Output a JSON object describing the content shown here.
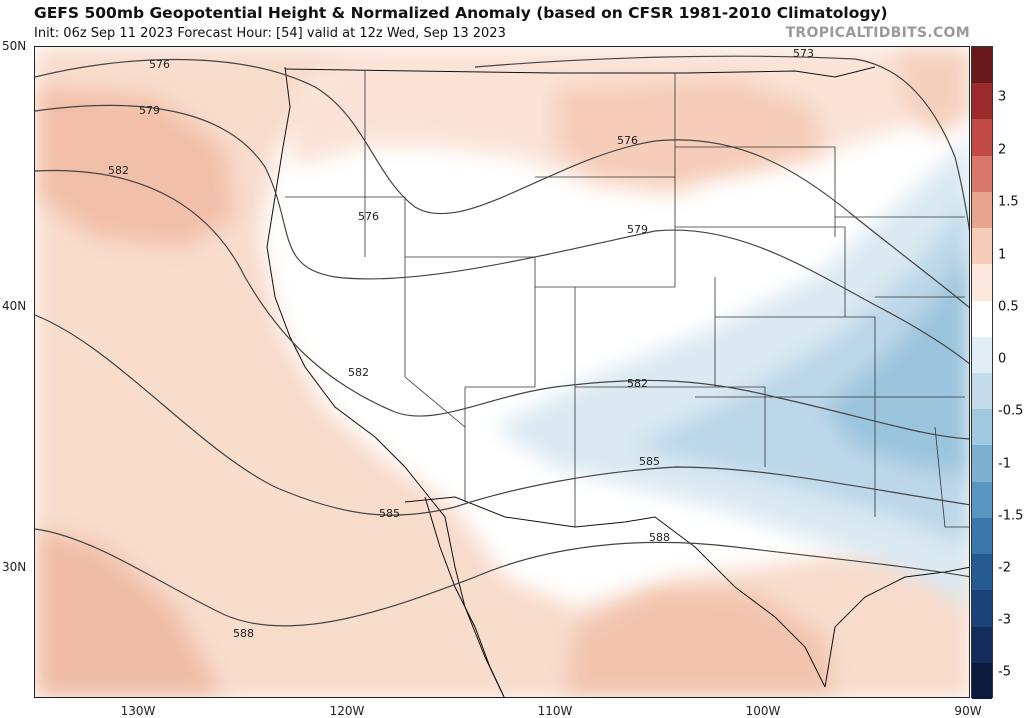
{
  "header": {
    "title": "GEFS 500mb Geopotential Height & Normalized Anomaly (based on CFSR 1981-2010 Climatology)",
    "subtitle": "Init: 06z Sep 11 2023   Forecast Hour: [54]   valid at 12z Wed, Sep 13 2023",
    "watermark": "TROPICALTIDBITS.COM"
  },
  "map": {
    "lat_labels": [
      "50N",
      "40N",
      "30N"
    ],
    "lon_labels": [
      "130W",
      "120W",
      "110W",
      "100W",
      "90W"
    ],
    "contour_labels": [
      "573",
      "576",
      "576",
      "576",
      "579",
      "579",
      "582",
      "582",
      "582",
      "585",
      "585",
      "588",
      "588"
    ]
  },
  "colorbar": {
    "labels": [
      "3",
      "2",
      "1.5",
      "1",
      "0.5",
      "0",
      "-0.5",
      "-1",
      "-1.5",
      "-2",
      "-3",
      "-5"
    ],
    "colors": [
      "#6b1a1c",
      "#9c2b2c",
      "#c24a46",
      "#d9786a",
      "#e9a48e",
      "#f5cdb9",
      "#fbe7dc",
      "#ffffff",
      "#e1edf4",
      "#c3dceb",
      "#a0c8df",
      "#7cb0d1",
      "#5996c1",
      "#3a77ad",
      "#265b92",
      "#1b4279",
      "#132c5c",
      "#0b1a3d"
    ]
  }
}
